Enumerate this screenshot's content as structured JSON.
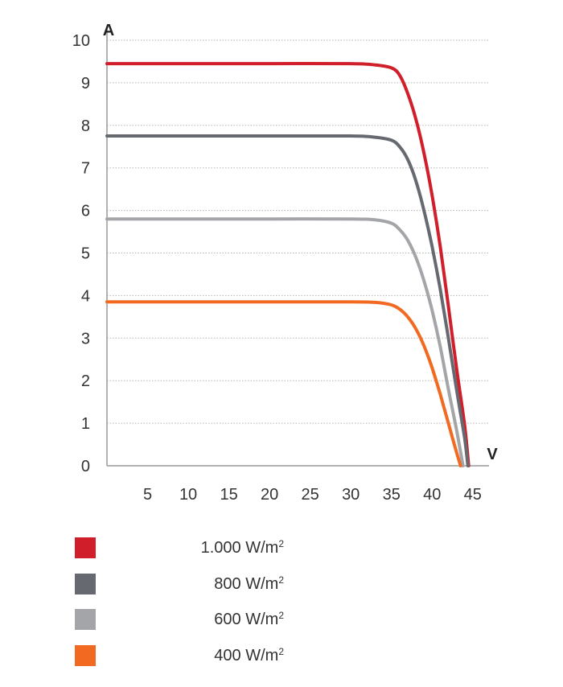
{
  "chart_data": {
    "type": "line",
    "xlabel": "V",
    "ylabel": "A",
    "xlim": [
      0,
      47
    ],
    "ylim": [
      0,
      10
    ],
    "x_ticks": [
      "5",
      "10",
      "15",
      "20",
      "25",
      "30",
      "35",
      "40",
      "45"
    ],
    "y_ticks": [
      "0",
      "1",
      "2",
      "3",
      "4",
      "5",
      "6",
      "7",
      "8",
      "9",
      "10"
    ],
    "grid": "horizontal-dotted",
    "legend_position": "bottom",
    "series": [
      {
        "name": "1.000 W/m²",
        "color": "#d01f2a",
        "x": [
          0,
          10,
          20,
          30,
          33,
          35,
          36,
          37,
          38,
          39,
          40,
          41,
          42,
          43,
          44,
          44.5
        ],
        "y": [
          9.45,
          9.45,
          9.45,
          9.45,
          9.42,
          9.35,
          9.18,
          8.75,
          8.15,
          7.35,
          6.35,
          5.15,
          3.75,
          2.3,
          0.95,
          0
        ]
      },
      {
        "name": "800 W/m²",
        "color": "#666a70",
        "x": [
          0,
          10,
          20,
          30,
          33,
          35,
          36,
          37,
          38,
          39,
          40,
          41,
          42,
          43,
          44,
          44.4
        ],
        "y": [
          7.75,
          7.75,
          7.75,
          7.75,
          7.72,
          7.65,
          7.5,
          7.2,
          6.7,
          6.0,
          5.15,
          4.15,
          3.0,
          1.8,
          0.65,
          0
        ]
      },
      {
        "name": "600 W/m²",
        "color": "#a3a5a8",
        "x": [
          0,
          10,
          20,
          30,
          33,
          35,
          36,
          37,
          38,
          39,
          40,
          41,
          42,
          43,
          43.8
        ],
        "y": [
          5.8,
          5.8,
          5.8,
          5.8,
          5.78,
          5.7,
          5.55,
          5.3,
          4.9,
          4.35,
          3.65,
          2.8,
          1.8,
          0.85,
          0
        ]
      },
      {
        "name": "400 W/m²",
        "color": "#f26a21",
        "x": [
          0,
          10,
          20,
          30,
          33,
          35,
          36,
          37,
          38,
          39,
          40,
          41,
          42,
          43,
          43.5
        ],
        "y": [
          3.85,
          3.85,
          3.85,
          3.85,
          3.84,
          3.78,
          3.68,
          3.5,
          3.22,
          2.82,
          2.3,
          1.68,
          1.0,
          0.32,
          0
        ]
      }
    ]
  },
  "legend": [
    {
      "value": "1.000 W/m",
      "sup": "2",
      "color": "#d01f2a"
    },
    {
      "value": "800 W/m",
      "sup": "2",
      "color": "#666a70"
    },
    {
      "value": "600 W/m",
      "sup": "2",
      "color": "#a3a5a8"
    },
    {
      "value": "400 W/m",
      "sup": "2",
      "color": "#f26a21"
    }
  ]
}
